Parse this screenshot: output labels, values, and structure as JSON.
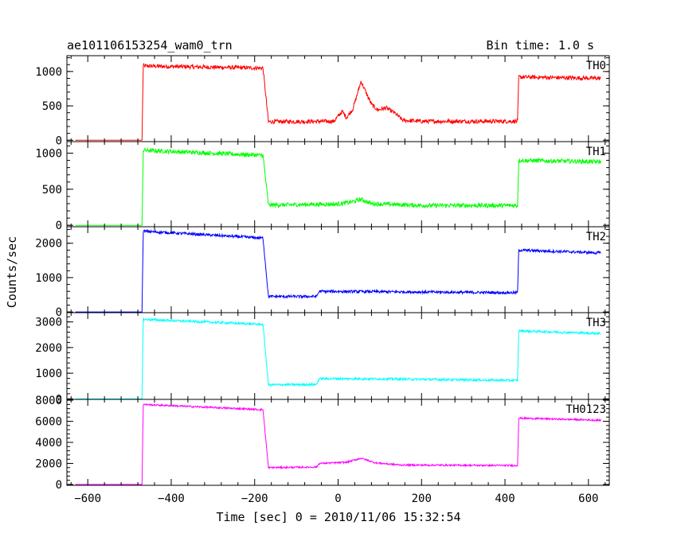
{
  "chart_data": {
    "type": "line",
    "title": "ae101106153254_wam0_trn",
    "subtitle": "Bin time: 1.0 s",
    "xlabel": "Time [sec] 0 = 2010/11/06 15:32:54",
    "ylabel": "Counts/sec",
    "xlim": [
      -650,
      650
    ],
    "x_ticks": [
      -600,
      -400,
      -200,
      0,
      200,
      400,
      600
    ],
    "grid": false,
    "panels": [
      {
        "name": "TH0",
        "color": "#ff0000",
        "ylim": [
          -20,
          1230
        ],
        "y_ticks": [
          0,
          500,
          1000
        ],
        "noise": 30,
        "points": [
          [
            -630,
            0
          ],
          [
            -470,
            0
          ],
          [
            -467,
            1080
          ],
          [
            -180,
            1050
          ],
          [
            -167,
            270
          ],
          [
            -10,
            275
          ],
          [
            0,
            350
          ],
          [
            10,
            420
          ],
          [
            20,
            330
          ],
          [
            35,
            450
          ],
          [
            45,
            650
          ],
          [
            55,
            860
          ],
          [
            65,
            720
          ],
          [
            80,
            520
          ],
          [
            95,
            440
          ],
          [
            115,
            470
          ],
          [
            135,
            400
          ],
          [
            155,
            290
          ],
          [
            200,
            275
          ],
          [
            430,
            275
          ],
          [
            433,
            920
          ],
          [
            630,
            900
          ]
        ]
      },
      {
        "name": "TH1",
        "color": "#00ff00",
        "ylim": [
          -20,
          1160
        ],
        "y_ticks": [
          0,
          500,
          1000
        ],
        "noise": 30,
        "points": [
          [
            -630,
            0
          ],
          [
            -470,
            0
          ],
          [
            -467,
            1040
          ],
          [
            -180,
            970
          ],
          [
            -167,
            280
          ],
          [
            0,
            295
          ],
          [
            30,
            320
          ],
          [
            55,
            360
          ],
          [
            80,
            300
          ],
          [
            200,
            275
          ],
          [
            430,
            275
          ],
          [
            433,
            900
          ],
          [
            630,
            880
          ]
        ]
      },
      {
        "name": "TH2",
        "color": "#0000ff",
        "ylim": [
          -20,
          2480
        ],
        "y_ticks": [
          0,
          1000,
          2000
        ],
        "noise": 40,
        "points": [
          [
            -630,
            0
          ],
          [
            -470,
            0
          ],
          [
            -467,
            2350
          ],
          [
            -180,
            2150
          ],
          [
            -167,
            450
          ],
          [
            -52,
            450
          ],
          [
            -45,
            600
          ],
          [
            100,
            590
          ],
          [
            430,
            560
          ],
          [
            433,
            1800
          ],
          [
            630,
            1720
          ]
        ]
      },
      {
        "name": "TH3",
        "color": "#00ffff",
        "ylim": [
          -20,
          3360
        ],
        "y_ticks": [
          0,
          1000,
          2000,
          3000
        ],
        "noise": 45,
        "points": [
          [
            -630,
            0
          ],
          [
            -470,
            0
          ],
          [
            -467,
            3100
          ],
          [
            -180,
            2900
          ],
          [
            -167,
            550
          ],
          [
            -52,
            560
          ],
          [
            -45,
            790
          ],
          [
            100,
            780
          ],
          [
            430,
            720
          ],
          [
            433,
            2650
          ],
          [
            630,
            2550
          ]
        ]
      },
      {
        "name": "TH0123",
        "color": "#ff00ff",
        "ylim": [
          -80,
          8080
        ],
        "y_ticks": [
          0,
          2000,
          4000,
          6000,
          8000
        ],
        "noise": 80,
        "points": [
          [
            -630,
            0
          ],
          [
            -470,
            0
          ],
          [
            -467,
            7600
          ],
          [
            -180,
            7100
          ],
          [
            -167,
            1600
          ],
          [
            -52,
            1650
          ],
          [
            -45,
            2000
          ],
          [
            20,
            2100
          ],
          [
            55,
            2500
          ],
          [
            90,
            2050
          ],
          [
            150,
            1850
          ],
          [
            430,
            1800
          ],
          [
            433,
            6300
          ],
          [
            630,
            6100
          ]
        ]
      }
    ]
  }
}
